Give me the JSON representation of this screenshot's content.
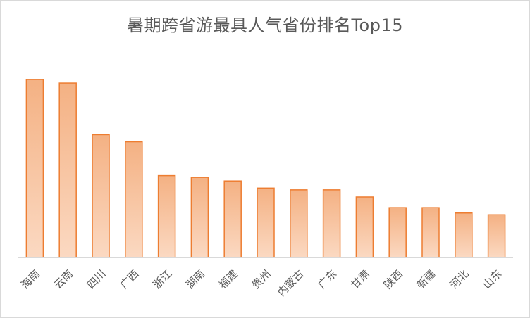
{
  "chart_data": {
    "type": "bar",
    "title": "暑期跨省游最具人气省份排名Top15",
    "categories": [
      "海南",
      "云南",
      "四川",
      "广西",
      "浙江",
      "湖南",
      "福建",
      "贵州",
      "内蒙古",
      "广东",
      "甘肃",
      "陕西",
      "新疆",
      "河北",
      "山东"
    ],
    "values": [
      100,
      98,
      69,
      65,
      46,
      45,
      43,
      39,
      38,
      38,
      34,
      28,
      28,
      25,
      24
    ],
    "ylim": [
      0,
      100
    ],
    "xlabel": "",
    "ylabel": "",
    "grid": false,
    "colors": {
      "bar_fill_top": "#f4b183",
      "bar_fill_bottom": "#fbd9c2",
      "bar_stroke": "#ed7d31",
      "axis": "#d9d9d9",
      "tick_text": "#595959",
      "title_text": "#595959"
    }
  }
}
